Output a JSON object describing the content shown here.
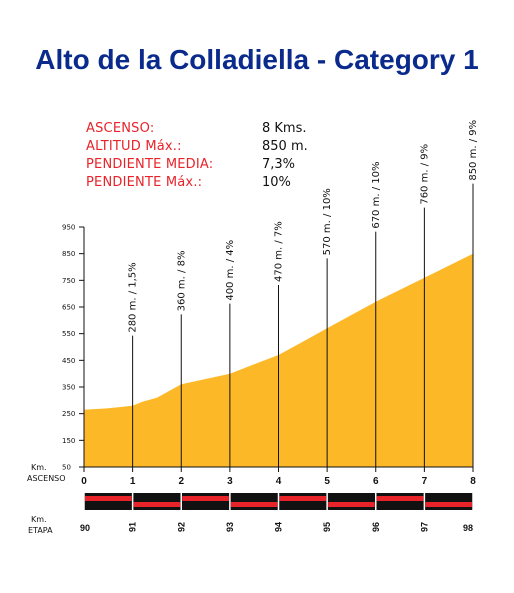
{
  "title": "Alto de la Colladiella - Category 1",
  "stats": [
    {
      "label": "ASCENSO:",
      "value": "8 Kms."
    },
    {
      "label": "ALTITUD Máx.:",
      "value": "850 m."
    },
    {
      "label": "PENDIENTE MEDIA:",
      "value": "7,3%"
    },
    {
      "label": "PENDIENTE Máx.:",
      "value": "10%"
    }
  ],
  "colors": {
    "title": "#0a2a8c",
    "stat_label": "#e8232a",
    "profile_fill": "#fdb827",
    "bar_red": "#e8232a",
    "bar_black": "#111111"
  },
  "chart_data": {
    "type": "area",
    "title": "Alto de la Colladiella - Category 1",
    "xlabel": "Km. ASCENSO",
    "x2label": "Km. ETAPA",
    "ylim": [
      50,
      950
    ],
    "xlim": [
      0,
      8
    ],
    "y_ticks": [
      "950",
      "850",
      "750",
      "650",
      "550",
      "450",
      "350",
      "250",
      "150",
      "50"
    ],
    "x_ticks": [
      "0",
      "1",
      "2",
      "3",
      "4",
      "5",
      "6",
      "7",
      "8"
    ],
    "x2_ticks": [
      "90",
      "91",
      "92",
      "93",
      "94",
      "95",
      "96",
      "97",
      "98"
    ],
    "profile": {
      "x": [
        0,
        0.5,
        1,
        1.2,
        1.5,
        2,
        2.5,
        3,
        3.5,
        4,
        4.5,
        5,
        5.5,
        6,
        6.5,
        7,
        7.5,
        8
      ],
      "y": [
        265,
        270,
        280,
        295,
        310,
        360,
        380,
        400,
        435,
        470,
        520,
        570,
        620,
        670,
        715,
        760,
        805,
        850
      ]
    },
    "annotations": [
      {
        "x": 1,
        "label": "280 m. / 1,5%"
      },
      {
        "x": 2,
        "label": "360 m. / 8%"
      },
      {
        "x": 3,
        "label": "400 m. / 4%"
      },
      {
        "x": 4,
        "label": "470 m. / 7%"
      },
      {
        "x": 5,
        "label": "570 m. / 10%"
      },
      {
        "x": 6,
        "label": "670 m. / 10%"
      },
      {
        "x": 7,
        "label": "760 m. / 9%"
      },
      {
        "x": 8,
        "label": "850 m. / 9%"
      }
    ],
    "grid": false
  }
}
